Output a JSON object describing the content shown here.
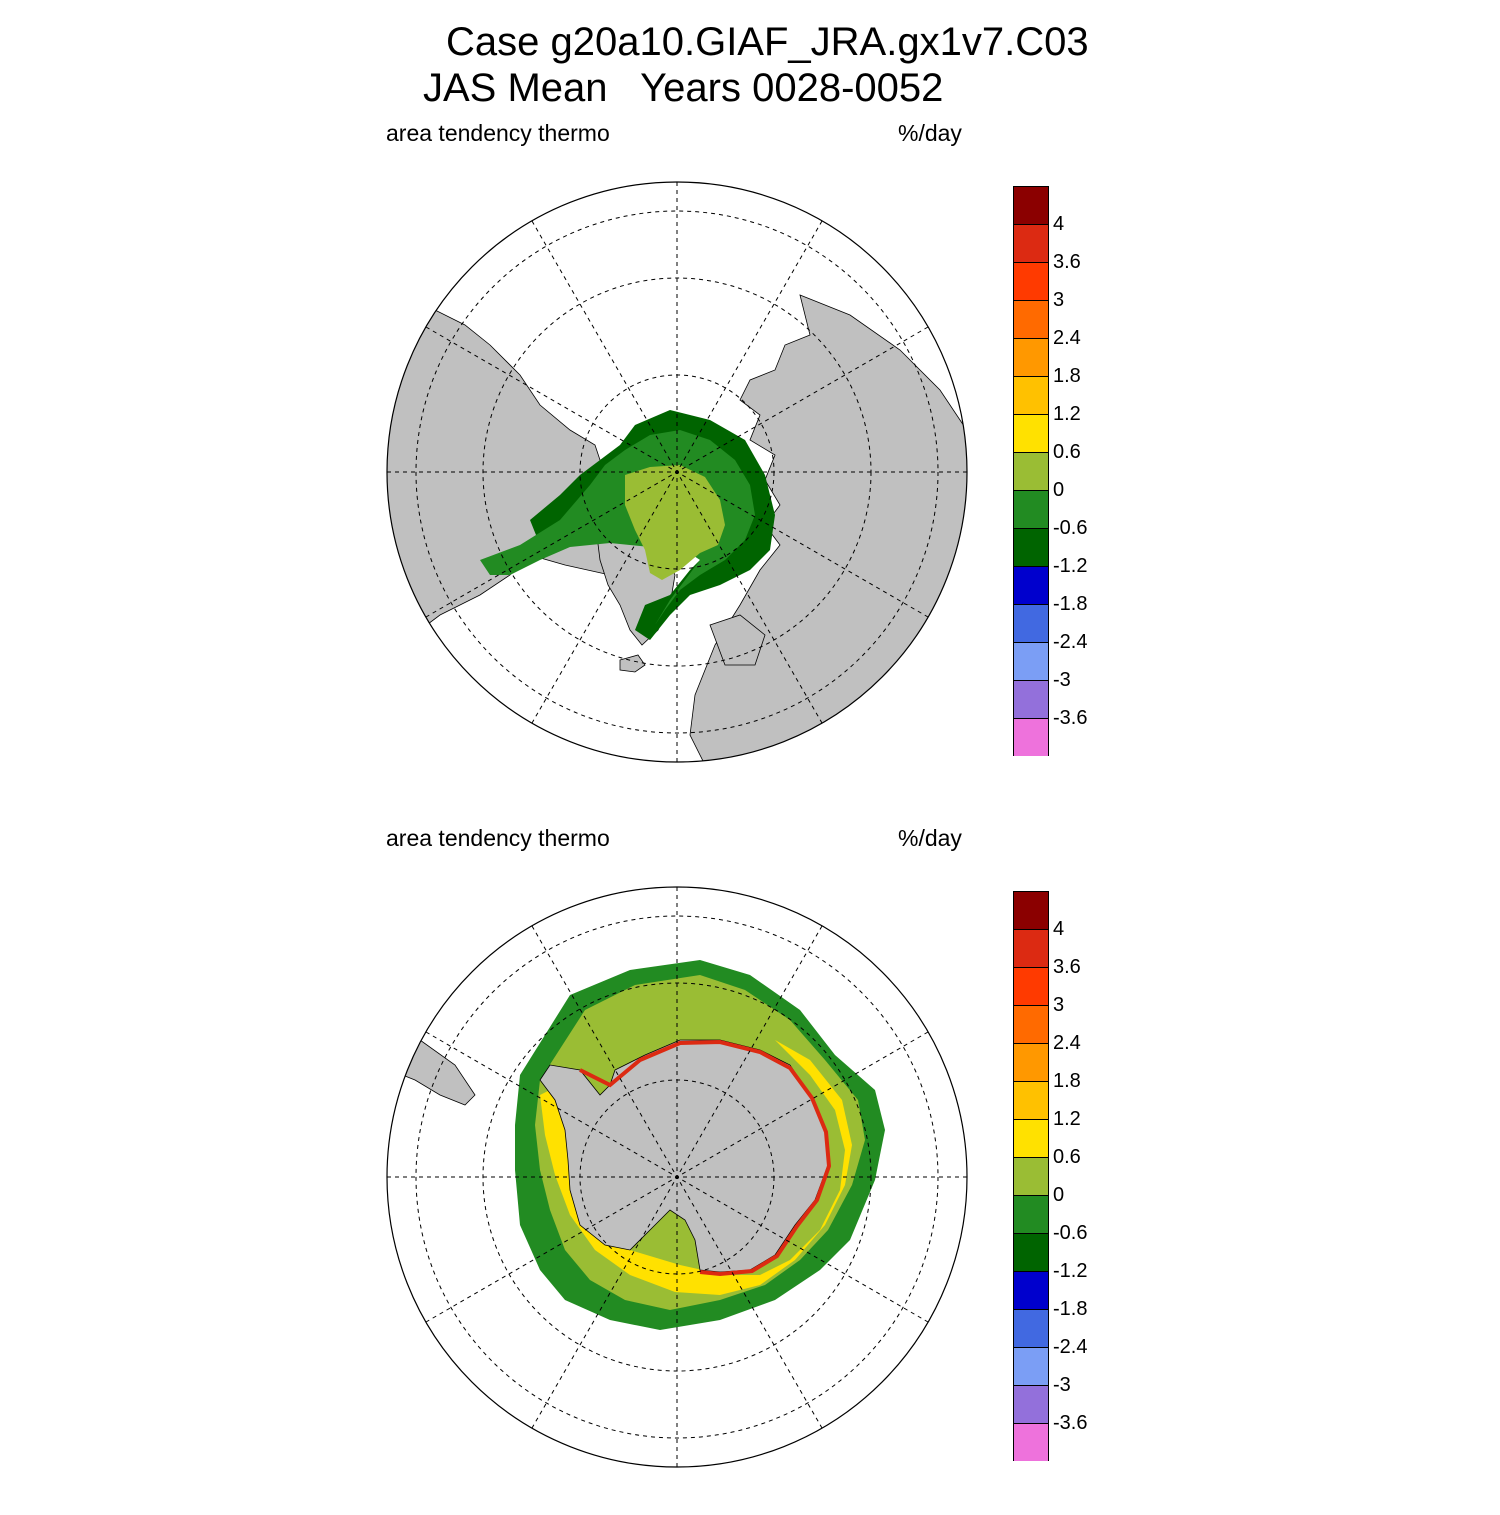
{
  "title": {
    "line1": "Case g20a10.GIAF_JRA.gx1v7.C03",
    "line2": "JAS Mean   Years 0028-0052"
  },
  "panels": [
    {
      "id": "nh",
      "label_left": "area tendency thermo",
      "label_right": "%/day",
      "hemisphere": "north"
    },
    {
      "id": "sh",
      "label_left": "area tendency thermo",
      "label_right": "%/day",
      "hemisphere": "south"
    }
  ],
  "colorbar": {
    "tick_labels": [
      "4",
      "3.6",
      "3",
      "2.4",
      "1.8",
      "1.2",
      "0.6",
      "0",
      "-0.6",
      "-1.2",
      "-1.8",
      "-2.4",
      "-3",
      "-3.6"
    ],
    "colors": [
      "#8b0000",
      "#dc2a12",
      "#ff3a00",
      "#ff6a00",
      "#ff9800",
      "#ffc100",
      "#ffe100",
      "#9abd34",
      "#228b22",
      "#006400",
      "#0000cd",
      "#4169e1",
      "#7b9ef5",
      "#9370db",
      "#ee72dc"
    ]
  },
  "colors": {
    "land": "#c0c0c0",
    "ocean": "#ffffff",
    "grid": "#000000"
  }
}
